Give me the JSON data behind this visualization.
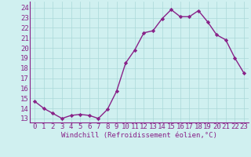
{
  "x": [
    0,
    1,
    2,
    3,
    4,
    5,
    6,
    7,
    8,
    9,
    10,
    11,
    12,
    13,
    14,
    15,
    16,
    17,
    18,
    19,
    20,
    21,
    22,
    23
  ],
  "y": [
    14.7,
    14.0,
    13.5,
    13.0,
    13.3,
    13.4,
    13.3,
    13.0,
    13.9,
    15.7,
    18.5,
    19.8,
    21.5,
    21.7,
    22.9,
    23.8,
    23.1,
    23.1,
    23.7,
    22.6,
    21.3,
    20.8,
    19.0,
    17.5
  ],
  "line_color": "#882288",
  "marker": "D",
  "marker_size": 2.2,
  "bg_color": "#d0f0f0",
  "grid_color": "#aad8d8",
  "xlabel": "Windchill (Refroidissement éolien,°C)",
  "ylabel_ticks": [
    13,
    14,
    15,
    16,
    17,
    18,
    19,
    20,
    21,
    22,
    23,
    24
  ],
  "ylim": [
    12.6,
    24.6
  ],
  "xlim": [
    -0.5,
    23.5
  ],
  "xlabel_fontsize": 6.5,
  "tick_fontsize": 6.5,
  "line_width": 1.0
}
